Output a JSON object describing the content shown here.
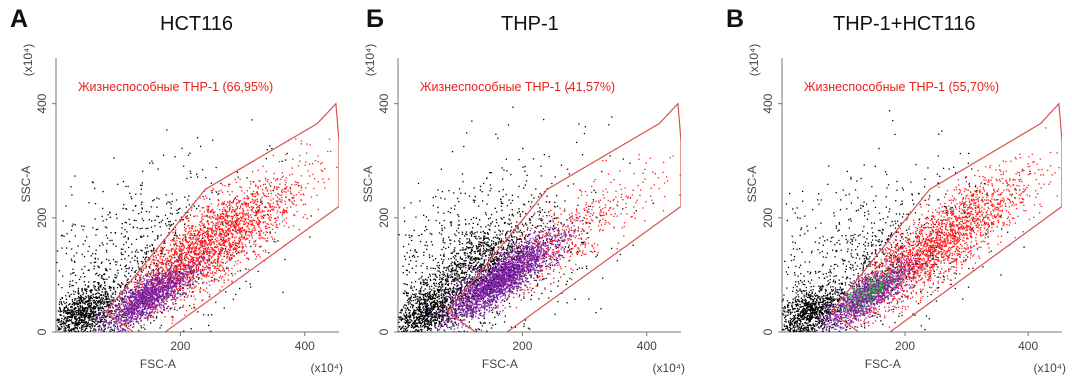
{
  "colors": {
    "gate": "#d9534f",
    "annotation": "#e8221b",
    "cells_outside": "#000000",
    "cells_gated": "#ff1a1a",
    "cells_thp1": "#7a1fa2",
    "cells_green": "#2ea043"
  },
  "chart_data": [
    {
      "type": "scatter",
      "panel_letter": "А",
      "title": "HCT116",
      "xlabel": "FSC-A",
      "ylabel": "SSC-A",
      "x_multiplier": "(x10⁴)",
      "y_multiplier": "(x10⁴)",
      "xlim": [
        0,
        455
      ],
      "ylim": [
        0,
        480
      ],
      "x_ticks": [
        "200",
        "400"
      ],
      "y_ticks": [
        "0",
        "200",
        "400"
      ],
      "gate_label": "Жизнеспособные ТНР-1 (66,95%)",
      "viable_percent": 66.95,
      "gate_polygon": [
        [
          80,
          35
        ],
        [
          150,
          -20
        ],
        [
          455,
          220
        ],
        [
          455,
          335
        ],
        [
          450,
          400
        ],
        [
          420,
          365
        ],
        [
          240,
          250
        ]
      ],
      "populations": [
        {
          "label": "outside-gate",
          "color": "#000000",
          "center": [
            40,
            35
          ]
        },
        {
          "label": "gated",
          "color": "#ff1a1a",
          "center": [
            250,
            150
          ]
        },
        {
          "label": "THP-1",
          "color": "#7a1fa2",
          "center": [
            140,
            60
          ]
        }
      ]
    },
    {
      "type": "scatter",
      "panel_letter": "Б",
      "title": "THP-1",
      "xlabel": "FSC-A",
      "ylabel": "SSC-A",
      "x_multiplier": "(x10⁴)",
      "y_multiplier": "(x10⁴)",
      "xlim": [
        0,
        455
      ],
      "ylim": [
        0,
        480
      ],
      "x_ticks": [
        "200",
        "400"
      ],
      "y_ticks": [
        "0",
        "200",
        "400"
      ],
      "gate_label": "Жизнеспособные ТНР-1 (41,57%)",
      "viable_percent": 41.57,
      "gate_polygon": [
        [
          80,
          35
        ],
        [
          150,
          -20
        ],
        [
          455,
          220
        ],
        [
          455,
          335
        ],
        [
          450,
          400
        ],
        [
          420,
          365
        ],
        [
          240,
          250
        ]
      ],
      "populations": [
        {
          "label": "outside-gate",
          "color": "#000000",
          "center": [
            40,
            40
          ]
        },
        {
          "label": "THP-1",
          "color": "#7a1fa2",
          "center": [
            165,
            100
          ]
        },
        {
          "label": "gated",
          "color": "#ff1a1a",
          "center": [
            270,
            170
          ]
        }
      ]
    },
    {
      "type": "scatter",
      "panel_letter": "В",
      "title": "THP-1+HCT116",
      "xlabel": "FSC-A",
      "ylabel": "SSC-A",
      "x_multiplier": "(x10⁴)",
      "y_multiplier": "(x10⁴)",
      "xlim": [
        0,
        455
      ],
      "ylim": [
        0,
        480
      ],
      "x_ticks": [
        "200",
        "400"
      ],
      "y_ticks": [
        "0",
        "200",
        "400"
      ],
      "gate_label": "Жизнеспособные ТНР-1 (55,70%)",
      "viable_percent": 55.7,
      "gate_polygon": [
        [
          80,
          35
        ],
        [
          150,
          -20
        ],
        [
          455,
          220
        ],
        [
          455,
          335
        ],
        [
          450,
          400
        ],
        [
          420,
          365
        ],
        [
          240,
          250
        ]
      ],
      "populations": [
        {
          "label": "outside-gate",
          "color": "#000000",
          "center": [
            35,
            30
          ]
        },
        {
          "label": "gated",
          "color": "#ff1a1a",
          "center": [
            260,
            160
          ]
        },
        {
          "label": "THP-1",
          "color": "#7a1fa2",
          "center": [
            130,
            60
          ]
        },
        {
          "label": "green-subset",
          "color": "#2ea043",
          "center": [
            130,
            70
          ]
        }
      ]
    }
  ]
}
